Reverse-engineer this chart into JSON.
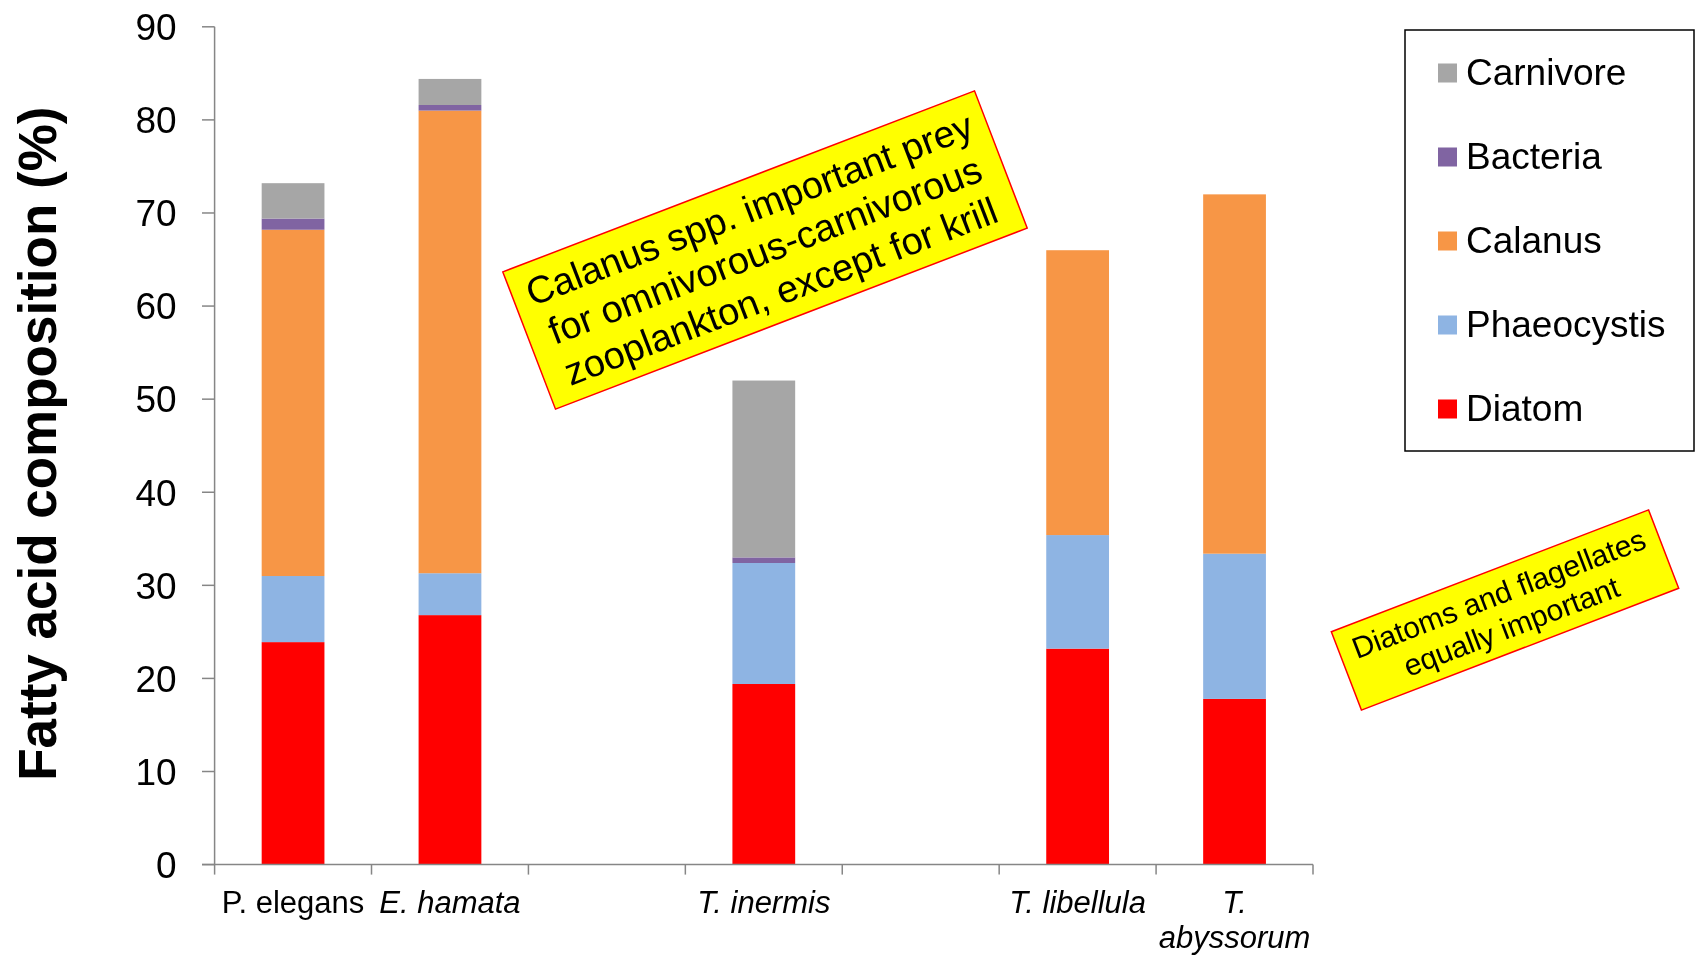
{
  "chart_data": {
    "type": "bar",
    "stacked": true,
    "ylabel": "Fatty acid composition (%)",
    "categories": [
      "P. elegans",
      "E. hamata",
      null,
      "T. inermis",
      null,
      "T. libellula",
      "T. abyssorum"
    ],
    "series": [
      {
        "name": "Diatom",
        "color": "#ff0000",
        "values": [
          23.9,
          26.8,
          null,
          19.4,
          null,
          23.2,
          17.8
        ]
      },
      {
        "name": "Phaeocystis",
        "color": "#8eb4e3",
        "values": [
          7.1,
          4.5,
          null,
          13.0,
          null,
          12.2,
          15.6
        ]
      },
      {
        "name": "Calanus",
        "color": "#f79646",
        "values": [
          37.2,
          49.7,
          null,
          null,
          null,
          30.6,
          38.6
        ]
      },
      {
        "name": "Bacteria",
        "color": "#8064a2",
        "values": [
          1.2,
          0.6,
          null,
          0.6,
          null,
          null,
          null
        ]
      },
      {
        "name": "Carnivore",
        "color": "#a6a6a6",
        "values": [
          3.8,
          2.8,
          null,
          19.0,
          null,
          null,
          null
        ]
      }
    ],
    "ylim": [
      0,
      90
    ],
    "yticks": [
      0,
      10,
      20,
      30,
      40,
      50,
      60,
      70,
      80,
      90
    ],
    "legend": "right",
    "annotations": [
      "Calanus spp. important prey for omnivorous-carnivorous zooplankton, except for krill",
      "Diatoms and flagellates equally important"
    ]
  }
}
